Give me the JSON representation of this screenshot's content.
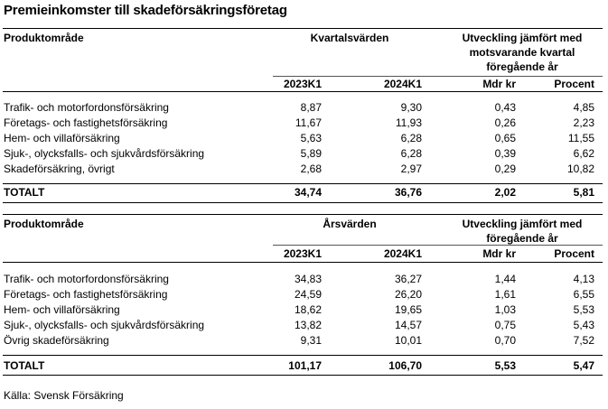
{
  "title": "Premieinkomster till skadeförsäkringsföretag",
  "tables": [
    {
      "product_header": "Produktområde",
      "values_header": "Kvartalsvärden",
      "change_header": [
        "Utveckling jämfört med",
        "motsvarande kvartal",
        "föregående år"
      ],
      "columns": [
        "2023K1",
        "2024K1",
        "Mdr kr",
        "Procent"
      ],
      "rows": [
        {
          "label": "Trafik- och motorfordonsförsäkring",
          "v1": "8,87",
          "v2": "9,30",
          "v3": "0,43",
          "v4": "4,85"
        },
        {
          "label": "Företags- och fastighetsförsäkring",
          "v1": "11,67",
          "v2": "11,93",
          "v3": "0,26",
          "v4": "2,23"
        },
        {
          "label": "Hem- och villaförsäkring",
          "v1": "5,63",
          "v2": "6,28",
          "v3": "0,65",
          "v4": "11,55"
        },
        {
          "label": "Sjuk-, olycksfalls- och sjukvårdsförsäkring",
          "v1": "5,89",
          "v2": "6,28",
          "v3": "0,39",
          "v4": "6,62"
        },
        {
          "label": "Skadeförsäkring, övrigt",
          "v1": "2,68",
          "v2": "2,97",
          "v3": "0,29",
          "v4": "10,82"
        }
      ],
      "total": {
        "label": "TOTALT",
        "v1": "34,74",
        "v2": "36,76",
        "v3": "2,02",
        "v4": "5,81"
      }
    },
    {
      "product_header": "Produktområde",
      "values_header": "Årsvärden",
      "change_header": [
        "Utveckling jämfört med",
        "föregående år"
      ],
      "columns": [
        "2023K1",
        "2024K1",
        "Mdr kr",
        "Procent"
      ],
      "rows": [
        {
          "label": "Trafik- och motorfordonsförsäkring",
          "v1": "34,83",
          "v2": "36,27",
          "v3": "1,44",
          "v4": "4,13"
        },
        {
          "label": "Företags- och fastighetsförsäkring",
          "v1": "24,59",
          "v2": "26,20",
          "v3": "1,61",
          "v4": "6,55"
        },
        {
          "label": "Hem- och villaförsäkring",
          "v1": "18,62",
          "v2": "19,65",
          "v3": "1,03",
          "v4": "5,53"
        },
        {
          "label": "Sjuk-, olycksfalls- och sjukvårdsförsäkring",
          "v1": "13,82",
          "v2": "14,57",
          "v3": "0,75",
          "v4": "5,43"
        },
        {
          "label": "Övrig skadeförsäkring",
          "v1": "9,31",
          "v2": "10,01",
          "v3": "0,70",
          "v4": "7,52"
        }
      ],
      "total": {
        "label": "TOTALT",
        "v1": "101,17",
        "v2": "106,70",
        "v3": "5,53",
        "v4": "5,47"
      }
    }
  ],
  "source": "Källa: Svensk Försäkring"
}
